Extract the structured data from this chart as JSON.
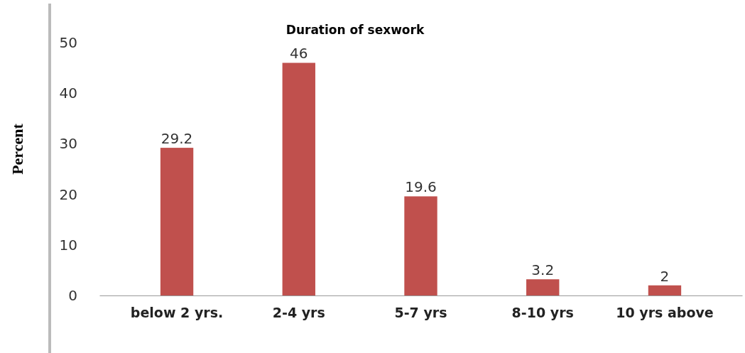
{
  "chart_data": {
    "type": "bar",
    "title": "Duration of sexwork",
    "ylabel": "Percent",
    "categories": [
      "below 2 yrs.",
      "2-4 yrs",
      "5-7 yrs",
      "8-10 yrs",
      "10 yrs  above"
    ],
    "values": [
      29.2,
      46,
      19.6,
      3.2,
      2
    ],
    "color": "#c0504d",
    "ylim": [
      0,
      50
    ],
    "yticks": [
      0,
      10,
      20,
      30,
      40,
      50
    ],
    "grid": false,
    "data_labels": true
  }
}
